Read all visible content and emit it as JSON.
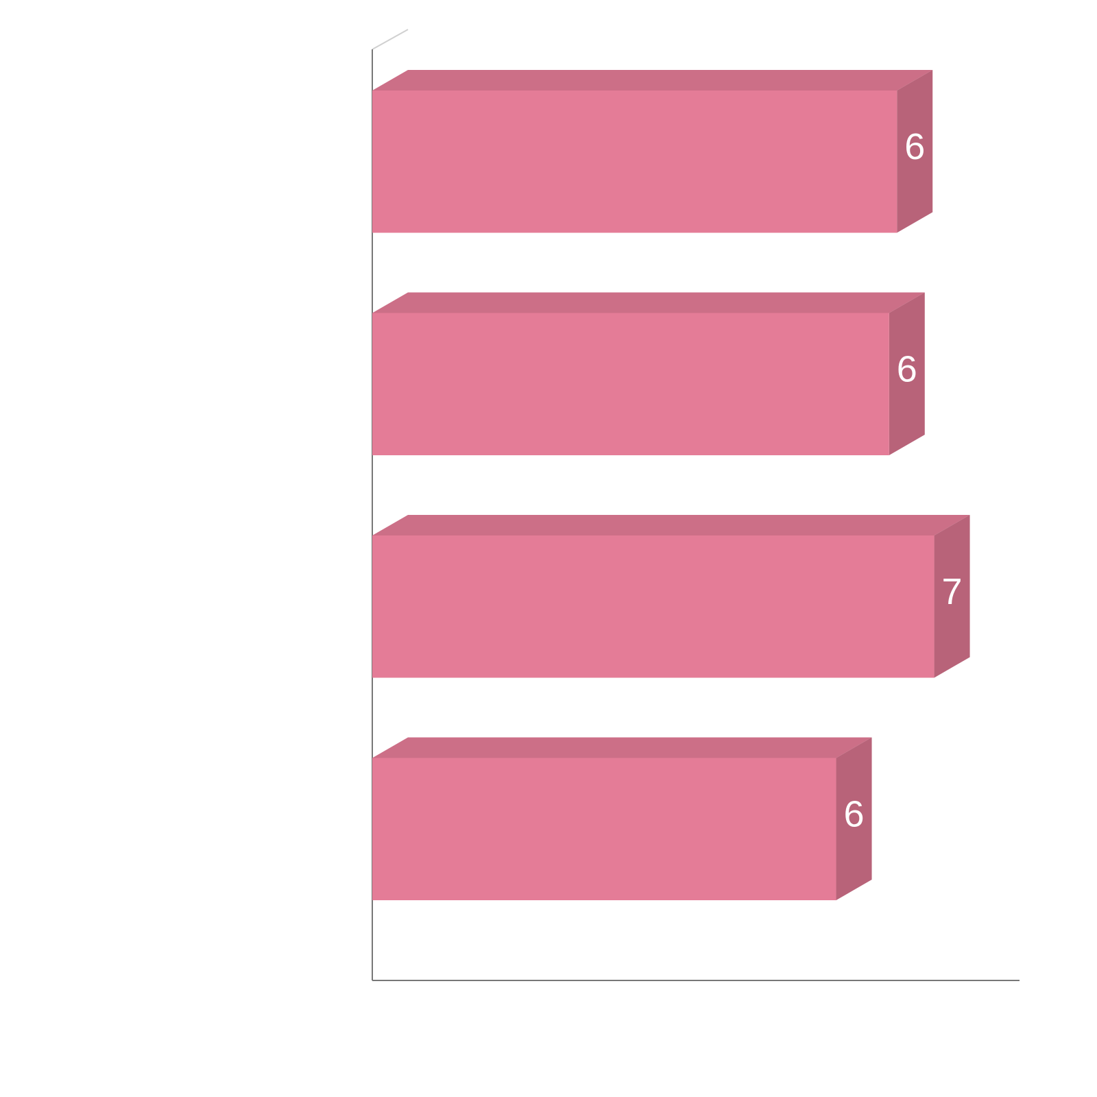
{
  "chart_data": {
    "type": "bar3d",
    "orientation": "horizontal",
    "values": [
      6.35,
      6.27,
      6.73,
      5.73
    ],
    "value_labels": [
      "6",
      "6",
      "7",
      "6"
    ],
    "colors": {
      "front": "#e47c97",
      "top": "#cc6f87",
      "side": "#b86379"
    },
    "xlim": [
      1,
      7.6
    ]
  }
}
